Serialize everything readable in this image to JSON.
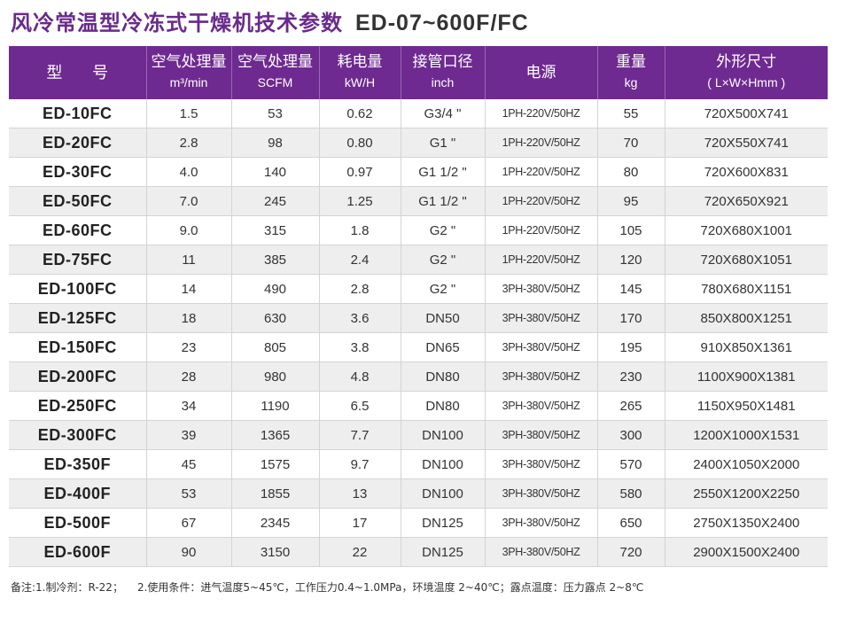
{
  "title": {
    "cn": "风冷常温型冷冻式干燥机技术参数",
    "model_range": "ED-07~600F/FC"
  },
  "headers": [
    {
      "main": "型 号",
      "sub": ""
    },
    {
      "main": "空气处理量",
      "sub": "m³/min"
    },
    {
      "main": "空气处理量",
      "sub": "SCFM"
    },
    {
      "main": "耗电量",
      "sub": "kW/H"
    },
    {
      "main": "接管口径",
      "sub": "inch"
    },
    {
      "main": "电源",
      "sub": ""
    },
    {
      "main": "重量",
      "sub": "kg"
    },
    {
      "main": "外形尺寸",
      "sub": "( L×W×Hmm )"
    }
  ],
  "rows": [
    [
      "ED-10FC",
      "1.5",
      "53",
      "0.62",
      "G3/4 \"",
      "1PH-220V/50HZ",
      "55",
      "720X500X741"
    ],
    [
      "ED-20FC",
      "2.8",
      "98",
      "0.80",
      "G1 \"",
      "1PH-220V/50HZ",
      "70",
      "720X550X741"
    ],
    [
      "ED-30FC",
      "4.0",
      "140",
      "0.97",
      "G1 1/2 \"",
      "1PH-220V/50HZ",
      "80",
      "720X600X831"
    ],
    [
      "ED-50FC",
      "7.0",
      "245",
      "1.25",
      "G1 1/2 \"",
      "1PH-220V/50HZ",
      "95",
      "720X650X921"
    ],
    [
      "ED-60FC",
      "9.0",
      "315",
      "1.8",
      "G2 \"",
      "1PH-220V/50HZ",
      "105",
      "720X680X1001"
    ],
    [
      "ED-75FC",
      "11",
      "385",
      "2.4",
      "G2 \"",
      "1PH-220V/50HZ",
      "120",
      "720X680X1051"
    ],
    [
      "ED-100FC",
      "14",
      "490",
      "2.8",
      "G2 \"",
      "3PH-380V/50HZ",
      "145",
      "780X680X1151"
    ],
    [
      "ED-125FC",
      "18",
      "630",
      "3.6",
      "DN50",
      "3PH-380V/50HZ",
      "170",
      "850X800X1251"
    ],
    [
      "ED-150FC",
      "23",
      "805",
      "3.8",
      "DN65",
      "3PH-380V/50HZ",
      "195",
      "910X850X1361"
    ],
    [
      "ED-200FC",
      "28",
      "980",
      "4.8",
      "DN80",
      "3PH-380V/50HZ",
      "230",
      "1100X900X1381"
    ],
    [
      "ED-250FC",
      "34",
      "1190",
      "6.5",
      "DN80",
      "3PH-380V/50HZ",
      "265",
      "1150X950X1481"
    ],
    [
      "ED-300FC",
      "39",
      "1365",
      "7.7",
      "DN100",
      "3PH-380V/50HZ",
      "300",
      "1200X1000X1531"
    ],
    [
      "ED-350F",
      "45",
      "1575",
      "9.7",
      "DN100",
      "3PH-380V/50HZ",
      "570",
      "2400X1050X2000"
    ],
    [
      "ED-400F",
      "53",
      "1855",
      "13",
      "DN100",
      "3PH-380V/50HZ",
      "580",
      "2550X1200X2250"
    ],
    [
      "ED-500F",
      "67",
      "2345",
      "17",
      "DN125",
      "3PH-380V/50HZ",
      "650",
      "2750X1350X2400"
    ],
    [
      "ED-600F",
      "90",
      "3150",
      "22",
      "DN125",
      "3PH-380V/50HZ",
      "720",
      "2900X1500X2400"
    ]
  ],
  "note": {
    "part1": "备注:1.制冷剂：R-22；",
    "part2": "2.使用条件：进气温度5~45℃，工作压力0.4~1.0MPa，环境温度 2~40℃；露点温度：压力露点 2~8℃"
  },
  "colors": {
    "title": "#6a2a8c",
    "header_bg": "#6e2a90",
    "stripe": "#eeeeee"
  }
}
